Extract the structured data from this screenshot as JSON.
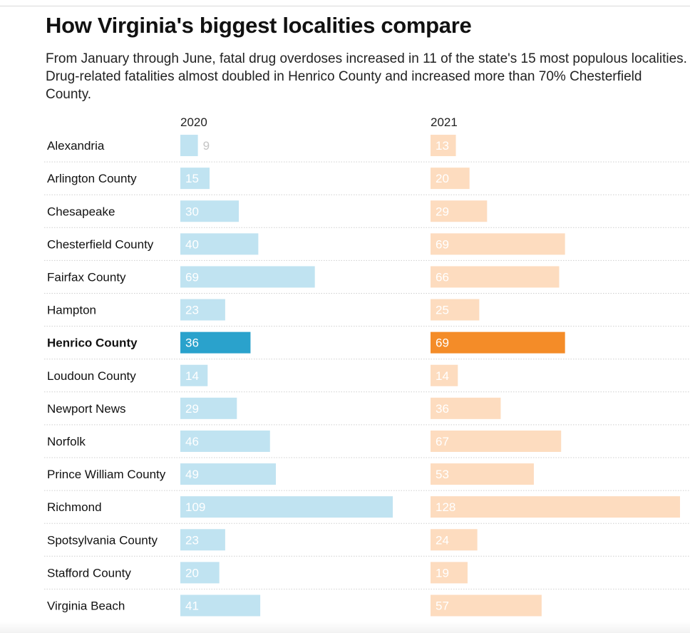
{
  "header": {
    "title": "How Virginia's biggest localities compare",
    "subtitle": "From January through June, fatal drug overdoses increased in 11 of the state's 15 most populous localities. Drug-related fatalities almost doubled in Henrico County and increased more than 70% Chesterfield County."
  },
  "chart_data": {
    "type": "bar",
    "orientation": "horizontal",
    "title": "How Virginia's biggest localities compare",
    "categories": [
      "Alexandria",
      "Arlington County",
      "Chesapeake",
      "Chesterfield County",
      "Fairfax County",
      "Hampton",
      "Henrico County",
      "Loudoun County",
      "Newport News",
      "Norfolk",
      "Prince William County",
      "Richmond",
      "Spotsylvania County",
      "Stafford County",
      "Virginia Beach"
    ],
    "highlight": "Henrico County",
    "series": [
      {
        "name": "2020",
        "values": [
          9,
          15,
          30,
          40,
          69,
          23,
          36,
          14,
          29,
          46,
          49,
          109,
          23,
          20,
          41
        ],
        "color": "#c0e3f1",
        "highlight_color": "#2aa2cc"
      },
      {
        "name": "2021",
        "values": [
          13,
          20,
          29,
          69,
          66,
          25,
          69,
          14,
          36,
          67,
          53,
          128,
          24,
          19,
          57
        ],
        "color": "#fddcbf",
        "highlight_color": "#f48c28"
      }
    ],
    "xlim": [
      0,
      128
    ],
    "grid": false,
    "row_separators": "dotted",
    "value_label_color": "#ffffff",
    "outside_label_color": "#c4c4c4"
  }
}
